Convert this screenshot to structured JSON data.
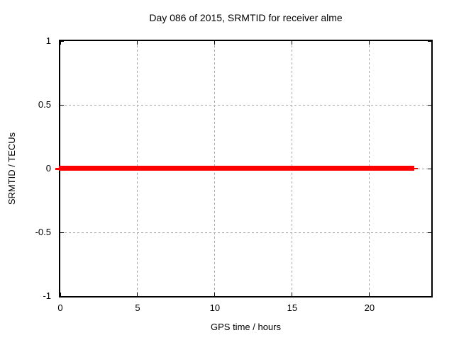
{
  "chart_data": {
    "type": "line",
    "title": "Day 086 of 2015, SRMTID for receiver alme",
    "xlabel": "GPS time / hours",
    "ylabel": "SRMTID / TECUs",
    "xlim": [
      0,
      24
    ],
    "ylim": [
      -1,
      1
    ],
    "x_ticks": [
      0,
      5,
      10,
      15,
      20
    ],
    "x_tick_labels": [
      "0",
      "5",
      "10",
      "15",
      "20"
    ],
    "y_ticks": [
      1,
      0.5,
      0,
      -0.5,
      -1
    ],
    "y_tick_labels": [
      "1",
      "0.5",
      "0",
      "-0.5",
      "-1"
    ],
    "grid": true,
    "legend": "none",
    "series": [
      {
        "name": "SRMTID",
        "color": "#ff0000",
        "x": [
          0,
          22.9
        ],
        "y": [
          0,
          0
        ],
        "style": "thick solid horizontal line at zero"
      }
    ]
  },
  "colors": {
    "background": "#ffffff",
    "border": "#000000",
    "grid": "#a8a8a8",
    "text": "#000000",
    "series": "#ff0000"
  }
}
